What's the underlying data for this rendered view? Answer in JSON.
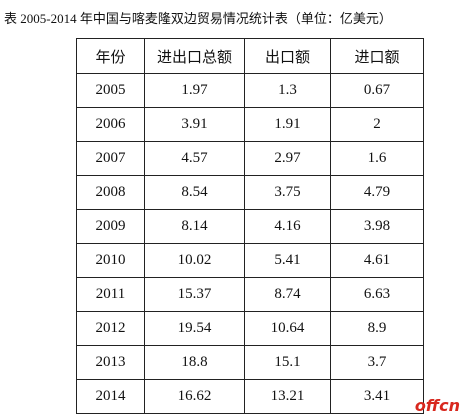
{
  "header": {
    "title": "表  2005-2014 年中国与喀麦隆双边贸易情况统计表（单位：亿美元）"
  },
  "table": {
    "columns": [
      "年份",
      "进出口总额",
      "出口额",
      "进口额"
    ],
    "rows": [
      [
        "2005",
        1.97,
        1.3,
        0.67
      ],
      [
        "2006",
        3.91,
        1.91,
        2
      ],
      [
        "2007",
        4.57,
        2.97,
        1.6
      ],
      [
        "2008",
        8.54,
        3.75,
        4.79
      ],
      [
        "2009",
        8.14,
        4.16,
        3.98
      ],
      [
        "2010",
        10.02,
        5.41,
        4.61
      ],
      [
        "2011",
        15.37,
        8.74,
        6.63
      ],
      [
        "2012",
        19.54,
        10.64,
        8.9
      ],
      [
        "2013",
        18.8,
        15.1,
        3.7
      ],
      [
        "2014",
        16.62,
        13.21,
        3.41
      ]
    ]
  },
  "watermark": "offcn"
}
